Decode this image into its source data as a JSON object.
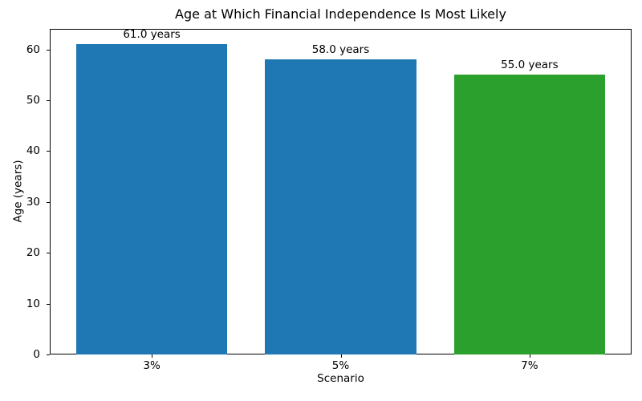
{
  "chart_data": {
    "type": "bar",
    "title": "Age at Which Financial Independence Is Most Likely",
    "xlabel": "Scenario",
    "ylabel": "Age (years)",
    "categories": [
      "3%",
      "5%",
      "7%"
    ],
    "values": [
      61.0,
      58.0,
      55.0
    ],
    "bar_labels": [
      "61.0 years",
      "58.0 years",
      "55.0 years"
    ],
    "bar_colors": [
      "#1f77b4",
      "#1f77b4",
      "#2ca02c"
    ],
    "ylim": [
      0,
      64.05
    ],
    "yticks": [
      0,
      10,
      20,
      30,
      40,
      50,
      60
    ],
    "grid": false,
    "legend_position": "none",
    "text_color": "#000000",
    "background_color": "#ffffff"
  }
}
